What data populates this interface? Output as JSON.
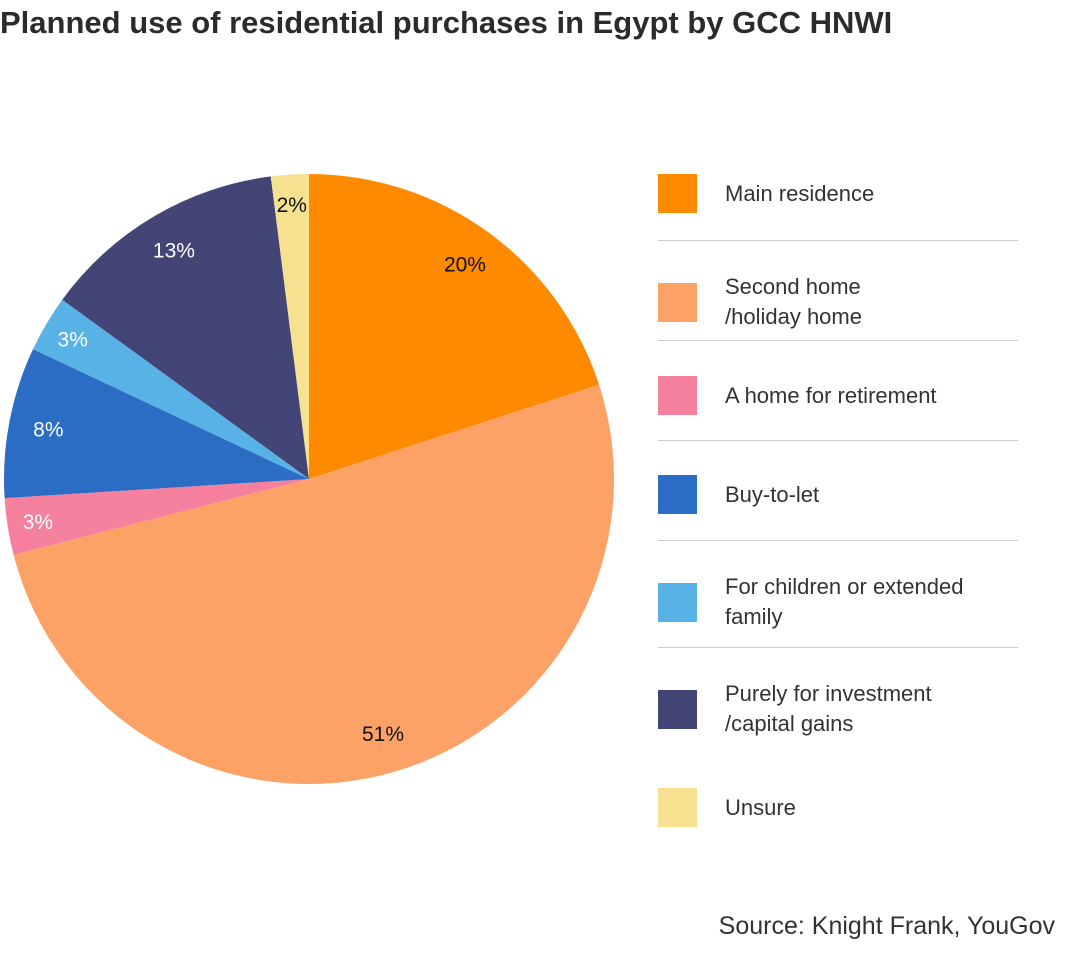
{
  "chart_data": {
    "type": "pie",
    "title": "Planned use of residential purchases in Egypt by GCC HNWI",
    "start": "top",
    "direction": "clockwise",
    "legend_position": "right",
    "slices": [
      {
        "label": "Main residence",
        "legend_text": "Main residence",
        "value": 20,
        "value_label": "20%",
        "color": "#FF8A00",
        "label_color": "#111111"
      },
      {
        "label": "Second home /holiday home",
        "legend_text": "Second home\n/holiday home",
        "value": 51,
        "value_label": "51%",
        "color": "#FCA266",
        "label_color": "#111111"
      },
      {
        "label": "A home for retirement",
        "legend_text": "A home for retirement",
        "value": 3,
        "value_label": "3%",
        "color": "#F5819F",
        "label_color": "#ffffff"
      },
      {
        "label": "Buy-to-let",
        "legend_text": "Buy-to-let",
        "value": 8,
        "value_label": "8%",
        "color": "#2B6CC4",
        "label_color": "#ffffff"
      },
      {
        "label": "For children or extended family",
        "legend_text": "For children or extended\nfamily",
        "value": 3,
        "value_label": "3%",
        "color": "#59B2E6",
        "label_color": "#ffffff"
      },
      {
        "label": "Purely for investment /capital gains",
        "legend_text": "Purely for investment\n/capital gains",
        "value": 13,
        "value_label": "13%",
        "color": "#434577",
        "label_color": "#ffffff"
      },
      {
        "label": "Unsure",
        "legend_text": "Unsure",
        "value": 2,
        "value_label": "2%",
        "color": "#F5E18F",
        "label_color": "#111111"
      }
    ]
  },
  "source": "Source: Knight Frank, YouGov"
}
